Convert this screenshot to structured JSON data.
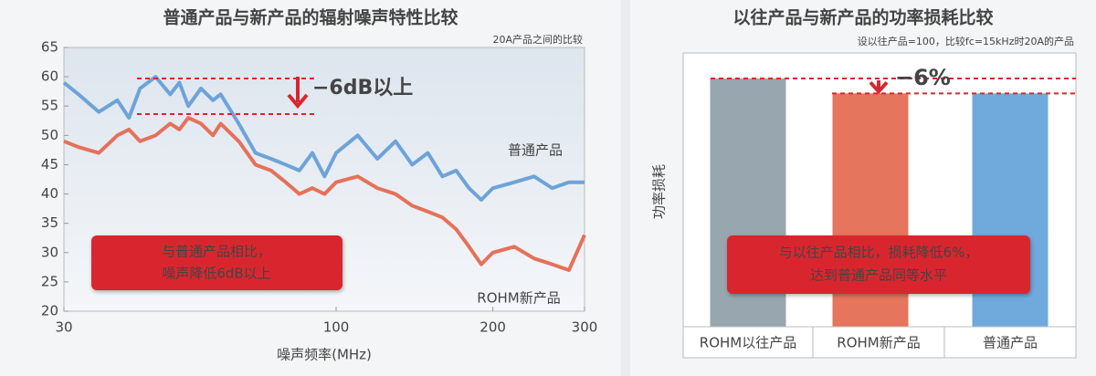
{
  "chart_data": [
    {
      "type": "line",
      "title": "普通产品与新产品的辐射噪声特性比较",
      "subtitle": "20A产品之间的比较",
      "x_label": "噪声频率(MHz)",
      "xscale": "log",
      "x": [
        30,
        32,
        35,
        38,
        40,
        42,
        45,
        48,
        50,
        52,
        55,
        58,
        60,
        65,
        70,
        75,
        80,
        85,
        90,
        95,
        100,
        110,
        120,
        130,
        140,
        150,
        160,
        170,
        180,
        190,
        200,
        220,
        240,
        260,
        280,
        300
      ],
      "series": [
        {
          "name": "普通产品",
          "color": "#6ea3d8",
          "values": [
            59,
            57,
            54,
            56,
            53,
            58,
            60,
            57,
            59,
            55,
            58,
            56,
            57,
            52,
            47,
            46,
            45,
            44,
            47,
            43,
            47,
            50,
            46,
            49,
            45,
            47,
            43,
            44,
            41,
            39,
            41,
            42,
            43,
            41,
            42,
            42
          ]
        },
        {
          "name": "ROHM新产品",
          "color": "#e5715a",
          "values": [
            49,
            48,
            47,
            50,
            51,
            49,
            50,
            52,
            51,
            53,
            52,
            50,
            52,
            49,
            45,
            44,
            42,
            40,
            41,
            40,
            42,
            43,
            41,
            40,
            38,
            37,
            36,
            34,
            31,
            28,
            30,
            31,
            29,
            28,
            27,
            33
          ]
        }
      ],
      "xlim": [
        30,
        300
      ],
      "xticks": [
        30,
        100,
        200,
        300
      ],
      "ylim": [
        20,
        65
      ],
      "yticks": [
        20,
        25,
        30,
        35,
        40,
        45,
        50,
        55,
        60,
        65
      ],
      "annotation": "−6dB以上",
      "note": [
        "与普通产品相比，",
        "噪声降低6dB以上"
      ]
    },
    {
      "type": "bar",
      "title": "以往产品与新产品的功率损耗比较",
      "subtitle": "设以往产品=100，比较fc=15kHz时20A的产品",
      "y_label": "功率损耗",
      "categories": [
        "ROHM以往产品",
        "ROHM新产品",
        "普通产品"
      ],
      "values": [
        100,
        94,
        94
      ],
      "colors": [
        "#97a6af",
        "#e5755c",
        "#70a9dc"
      ],
      "annotation": "−6%",
      "note": [
        "与以往产品相比，损耗降低6%，",
        "达到普通产品同等水平"
      ]
    }
  ]
}
